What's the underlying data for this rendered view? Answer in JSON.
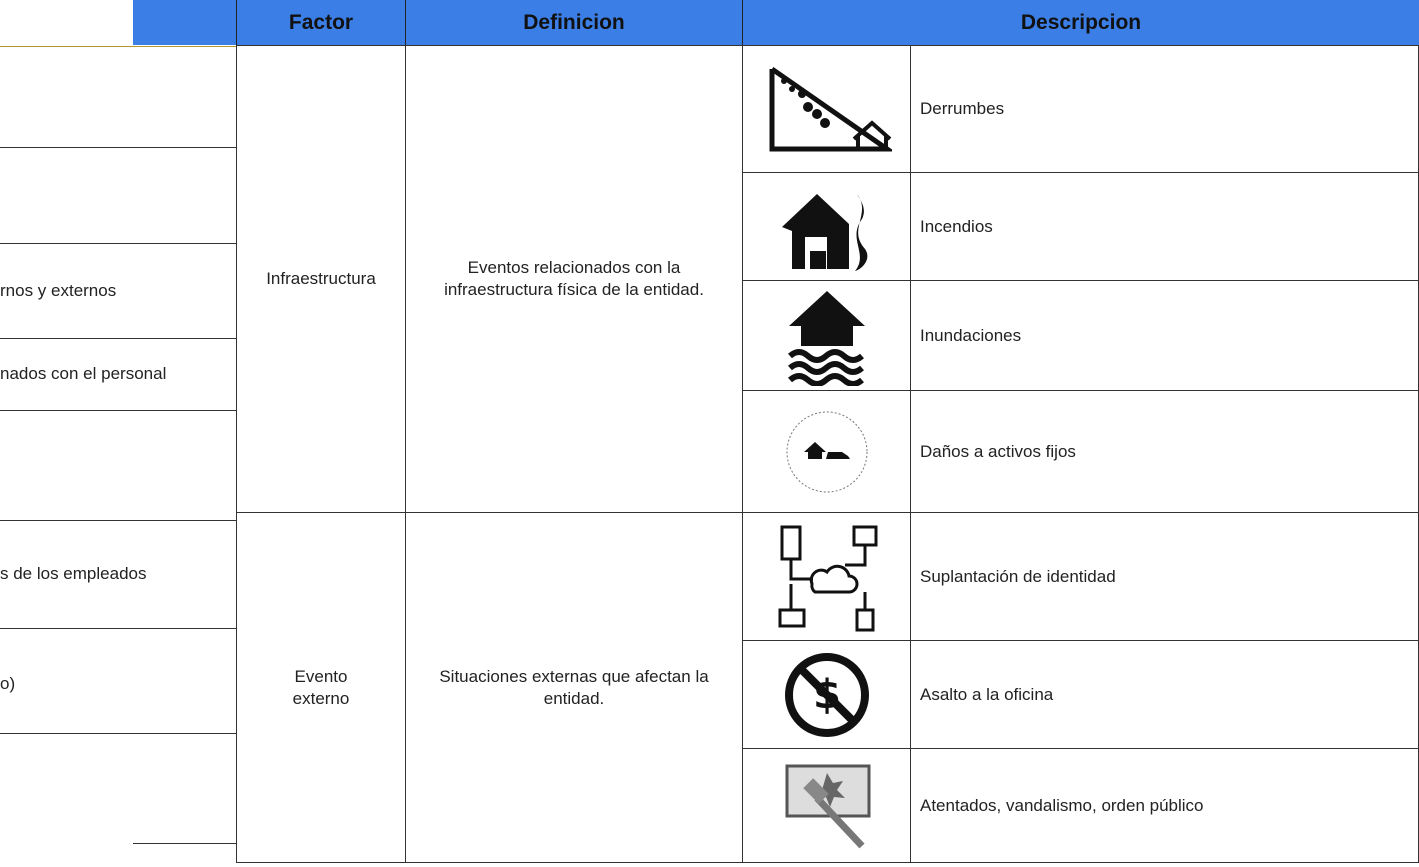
{
  "left_fragments": [
    "rnos y externos",
    "nados con el personal",
    "s de los empleados",
    "o)"
  ],
  "table": {
    "headers": [
      "Factor",
      "Definicion",
      "Descripcion"
    ],
    "groups": [
      {
        "factor": "Infraestructura",
        "definition": "Eventos relacionados con la infraestructura física de la entidad.",
        "items": [
          "Derrumbes",
          "Incendios",
          "Inundaciones",
          "Daños a activos fijos"
        ]
      },
      {
        "factor": "Evento externo",
        "definition": "Situaciones externas que afectan la entidad.",
        "items": [
          "Suplantación de identidad",
          "Asalto a la oficina",
          "Atentados, vandalismo, orden público"
        ]
      }
    ]
  }
}
